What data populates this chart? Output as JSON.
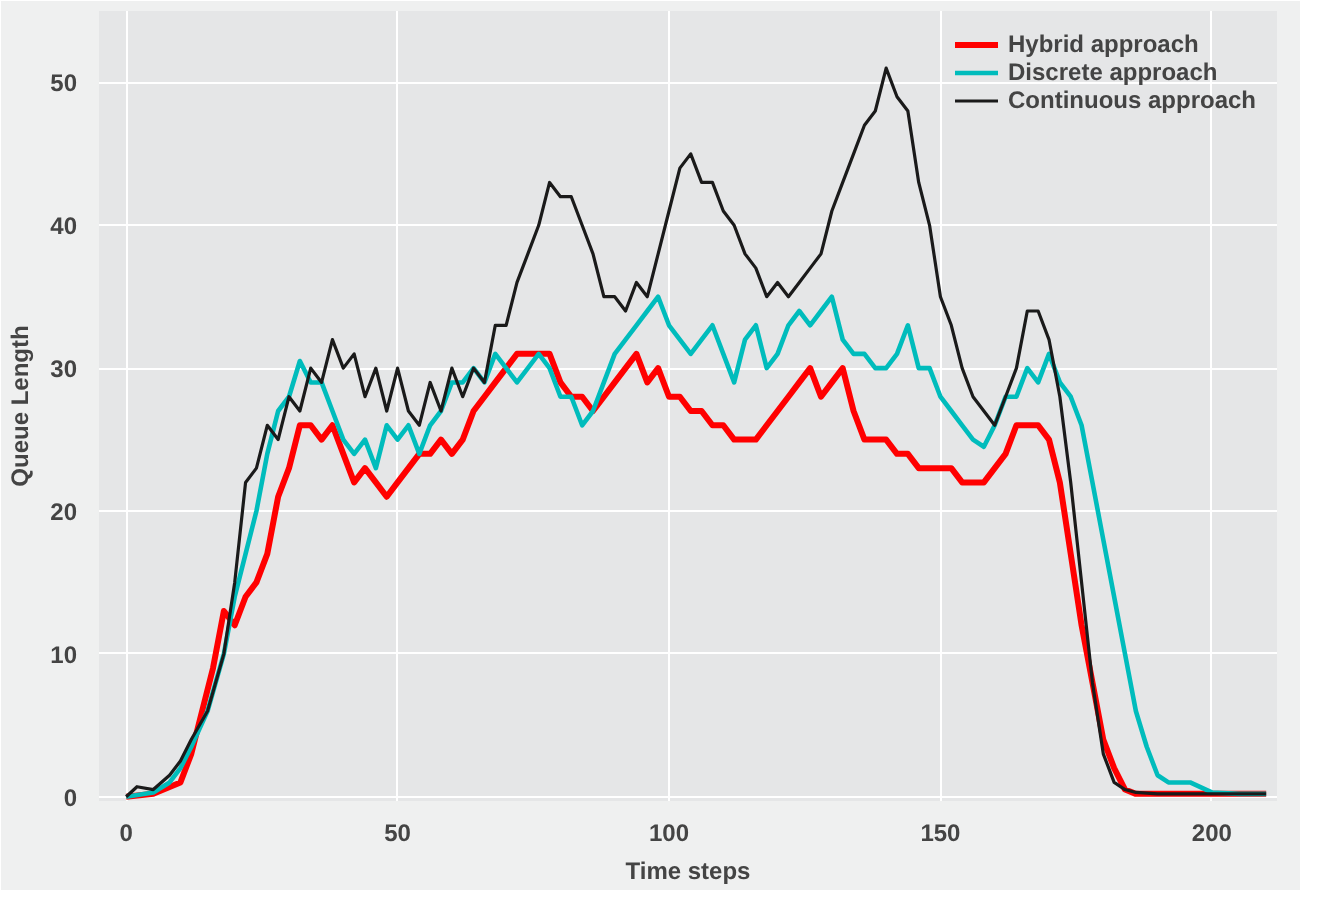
{
  "chart_data": {
    "type": "line",
    "xlabel": "Time steps",
    "ylabel": "Queue Length",
    "xlim": [
      -5,
      212
    ],
    "ylim": [
      -0.3,
      55
    ],
    "xticks": [
      0,
      50,
      100,
      150,
      200
    ],
    "yticks": [
      0,
      10,
      20,
      30,
      40,
      50
    ],
    "grid": true,
    "legend": "top right",
    "line_style": "solid",
    "series": [
      {
        "name": "Hybrid approach",
        "color": "#ff0000",
        "x": [
          0,
          5,
          10,
          12,
          14,
          16,
          18,
          20,
          22,
          24,
          26,
          28,
          30,
          32,
          34,
          36,
          38,
          40,
          42,
          44,
          46,
          48,
          50,
          52,
          54,
          56,
          58,
          60,
          62,
          64,
          66,
          68,
          70,
          72,
          74,
          76,
          78,
          80,
          82,
          84,
          86,
          88,
          90,
          92,
          94,
          96,
          98,
          100,
          102,
          104,
          106,
          108,
          110,
          112,
          114,
          116,
          118,
          120,
          122,
          124,
          126,
          128,
          130,
          132,
          134,
          136,
          138,
          140,
          142,
          144,
          146,
          148,
          150,
          152,
          154,
          156,
          158,
          160,
          162,
          164,
          166,
          168,
          170,
          172,
          174,
          176,
          178,
          180,
          182,
          184,
          186,
          190,
          200,
          210
        ],
        "values": [
          0,
          0.2,
          1,
          3,
          6,
          9,
          13,
          12,
          14,
          15,
          17,
          21,
          23,
          26,
          26,
          25,
          26,
          24,
          22,
          23,
          22,
          21,
          22,
          23,
          24,
          24,
          25,
          24,
          25,
          27,
          28,
          29,
          30,
          31,
          31,
          31,
          31,
          29,
          28,
          28,
          27,
          28,
          29,
          30,
          31,
          29,
          30,
          28,
          28,
          27,
          27,
          26,
          26,
          25,
          25,
          25,
          26,
          27,
          28,
          29,
          30,
          28,
          29,
          30,
          27,
          25,
          25,
          25,
          24,
          24,
          23,
          23,
          23,
          23,
          22,
          22,
          22,
          23,
          24,
          26,
          26,
          26,
          25,
          22,
          17,
          12,
          8,
          4,
          2,
          0.5,
          0.2,
          0.2,
          0.2,
          0.2
        ]
      },
      {
        "name": "Discrete approach",
        "color": "#00bcbc",
        "x": [
          0,
          5,
          8,
          10,
          12,
          15,
          18,
          20,
          22,
          24,
          26,
          28,
          30,
          32,
          34,
          36,
          38,
          40,
          42,
          44,
          46,
          48,
          50,
          52,
          54,
          56,
          58,
          60,
          62,
          64,
          66,
          68,
          70,
          72,
          74,
          76,
          78,
          80,
          82,
          84,
          86,
          88,
          90,
          92,
          94,
          96,
          98,
          100,
          102,
          104,
          106,
          108,
          110,
          112,
          114,
          116,
          118,
          120,
          122,
          124,
          126,
          128,
          130,
          132,
          134,
          136,
          138,
          140,
          142,
          144,
          146,
          148,
          150,
          152,
          154,
          156,
          158,
          160,
          162,
          164,
          166,
          168,
          170,
          172,
          174,
          176,
          178,
          180,
          182,
          184,
          186,
          188,
          190,
          192,
          196,
          200,
          205,
          210
        ],
        "values": [
          0,
          0.3,
          1,
          2,
          3.5,
          6,
          10,
          14,
          17,
          20,
          24,
          27,
          28,
          30.5,
          29,
          29,
          27,
          25,
          24,
          25,
          23,
          26,
          25,
          26,
          24,
          26,
          27,
          29,
          29,
          30,
          29,
          31,
          30,
          29,
          30,
          31,
          30,
          28,
          28,
          26,
          27,
          29,
          31,
          32,
          33,
          34,
          35,
          33,
          32,
          31,
          32,
          33,
          31,
          29,
          32,
          33,
          30,
          31,
          33,
          34,
          33,
          34,
          35,
          32,
          31,
          31,
          30,
          30,
          31,
          33,
          30,
          30,
          28,
          27,
          26,
          25,
          24.5,
          26,
          28,
          28,
          30,
          29,
          31,
          29,
          28,
          26,
          22,
          18,
          14,
          10,
          6,
          3.5,
          1.5,
          1,
          1,
          0.3,
          0.2,
          0.2
        ]
      },
      {
        "name": "Continuous approach",
        "color": "#1a1a1a",
        "x": [
          0,
          2,
          5,
          8,
          10,
          12,
          15,
          18,
          20,
          22,
          24,
          26,
          28,
          30,
          32,
          34,
          36,
          38,
          40,
          42,
          44,
          46,
          48,
          50,
          52,
          54,
          56,
          58,
          60,
          62,
          64,
          66,
          68,
          70,
          72,
          74,
          76,
          78,
          80,
          82,
          84,
          86,
          88,
          90,
          92,
          94,
          96,
          98,
          100,
          102,
          104,
          106,
          108,
          110,
          112,
          114,
          116,
          118,
          120,
          122,
          124,
          126,
          128,
          130,
          132,
          134,
          136,
          138,
          140,
          142,
          144,
          146,
          148,
          150,
          152,
          154,
          156,
          158,
          160,
          162,
          164,
          166,
          168,
          170,
          172,
          174,
          176,
          178,
          180,
          182,
          184,
          186,
          190,
          200,
          210
        ],
        "values": [
          0,
          0.7,
          0.5,
          1.5,
          2.5,
          4,
          6,
          10,
          15,
          22,
          23,
          26,
          25,
          28,
          27,
          30,
          29,
          32,
          30,
          31,
          28,
          30,
          27,
          30,
          27,
          26,
          29,
          27,
          30,
          28,
          30,
          29,
          33,
          33,
          36,
          38,
          40,
          43,
          42,
          42,
          40,
          38,
          35,
          35,
          34,
          36,
          35,
          38,
          41,
          44,
          45,
          43,
          43,
          41,
          40,
          38,
          37,
          35,
          36,
          35,
          36,
          37,
          38,
          41,
          43,
          45,
          47,
          48,
          51,
          49,
          48,
          43,
          40,
          35,
          33,
          30,
          28,
          27,
          26,
          28,
          30,
          34,
          34,
          32,
          28,
          22,
          15,
          8,
          3,
          1,
          0.5,
          0.3,
          0.2,
          0.2,
          0.2
        ]
      }
    ]
  }
}
